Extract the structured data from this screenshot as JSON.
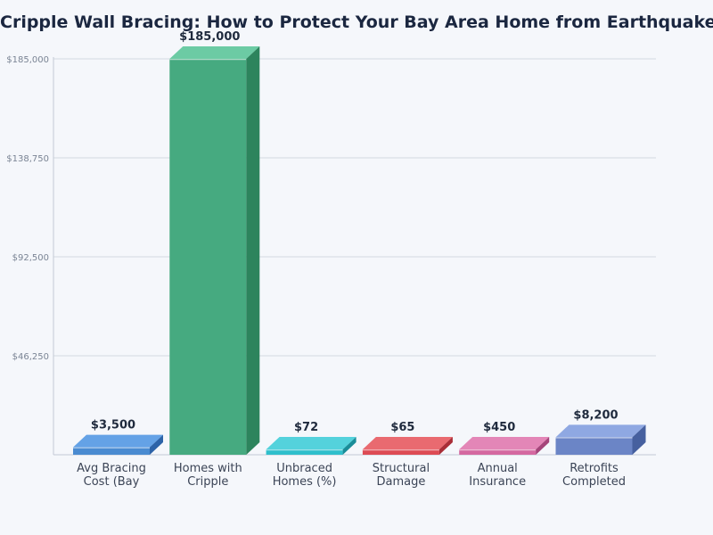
{
  "chart_data": {
    "type": "bar",
    "title": "Cripple Wall Bracing: How to Protect Your Bay Area Home from Earthquakes",
    "categories": [
      [
        "Avg Bracing",
        "Cost (Bay"
      ],
      [
        "Homes with",
        "Cripple"
      ],
      [
        "Unbraced",
        "Homes (%)"
      ],
      [
        "Structural",
        "Damage"
      ],
      [
        "Annual",
        "Insurance"
      ],
      [
        "Retrofits",
        "Completed"
      ]
    ],
    "values": [
      3500,
      185000,
      72,
      65,
      450,
      8200
    ],
    "value_labels": [
      "$3,500",
      "$185,000",
      "$72",
      "$65",
      "$450",
      "$8,200"
    ],
    "ylim": [
      0,
      185000
    ],
    "yticks": [
      46250,
      92500,
      138750,
      185000
    ],
    "ytick_labels": [
      "$46,250",
      "$92,500",
      "$138,750",
      "$185,000"
    ],
    "grid": true,
    "colors": [
      {
        "front": "#4a8bd1",
        "top": "#64a2e6",
        "side": "#2d63a8"
      },
      {
        "front": "#46aa80",
        "top": "#6ccba4",
        "side": "#2d845d"
      },
      {
        "front": "#2fbfcc",
        "top": "#54d2dc",
        "side": "#1a8d99"
      },
      {
        "front": "#dd4b54",
        "top": "#e96a70",
        "side": "#a92d37"
      },
      {
        "front": "#d468a0",
        "top": "#e386b7",
        "side": "#a5447a"
      },
      {
        "front": "#6b85c6",
        "top": "#8fa8e2",
        "side": "#46609f"
      }
    ]
  }
}
